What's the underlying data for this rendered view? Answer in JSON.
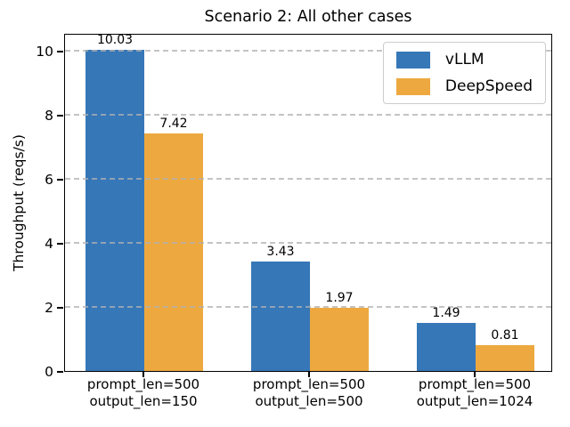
{
  "chart_data": {
    "type": "bar",
    "title": "Scenario 2: All other cases",
    "ylabel": "Throughput (reqs/s)",
    "categories": [
      {
        "line1": "prompt_len=500",
        "line2": "output_len=150"
      },
      {
        "line1": "prompt_len=500",
        "line2": "output_len=500"
      },
      {
        "line1": "prompt_len=500",
        "line2": "output_len=1024"
      }
    ],
    "series": [
      {
        "name": "vLLM",
        "color": "#3677b8",
        "values": [
          10.03,
          3.43,
          1.49
        ]
      },
      {
        "name": "DeepSpeed",
        "color": "#eda940",
        "values": [
          7.42,
          1.97,
          0.81
        ]
      }
    ],
    "value_labels": [
      [
        "10.03",
        "3.43",
        "1.49"
      ],
      [
        "7.42",
        "1.97",
        "0.81"
      ]
    ],
    "yticks": [
      "0",
      "2",
      "4",
      "6",
      "8",
      "10"
    ],
    "ylim": [
      0,
      10.56
    ],
    "grid": "dashed-horizontal-drawn-above-bars",
    "grid_color": "#b0b0b0",
    "legend_position": "upper right",
    "axis_color": "#000000"
  }
}
